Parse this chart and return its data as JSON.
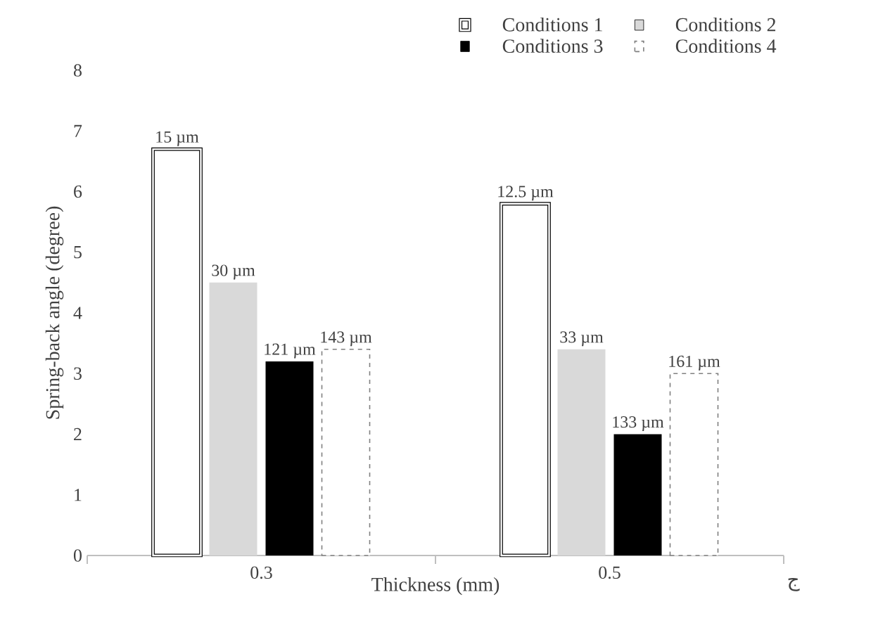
{
  "chart_data": {
    "type": "bar",
    "xlabel": "Thickness (mm)",
    "ylabel": "Spring-back angle (degree)",
    "categories": [
      "0.3",
      "0.5"
    ],
    "series": [
      {
        "name": "Conditions 1",
        "color": "#ffffff",
        "line_style": "solid",
        "values": [
          6.7,
          5.8
        ]
      },
      {
        "name": "Conditions 2",
        "color": "#d9d9d9",
        "values": [
          4.5,
          3.4
        ]
      },
      {
        "name": "Conditions 3",
        "color": "#000000",
        "values": [
          3.2,
          2.0
        ]
      },
      {
        "name": "Conditions 4",
        "color": "#ffffff",
        "line_style": "dashed",
        "values": [
          3.4,
          3.0
        ]
      }
    ],
    "ylim": [
      0,
      8
    ],
    "yticks": [
      0,
      1,
      2,
      3,
      4,
      5,
      6,
      7,
      8
    ],
    "grid": false,
    "legend": "top right",
    "annotations": [
      "15 µm",
      "30 µm",
      "121 µm",
      "143 µm",
      "12.5 µm",
      "33 µm",
      "133 µm",
      "161 µm",
      "ج"
    ]
  }
}
